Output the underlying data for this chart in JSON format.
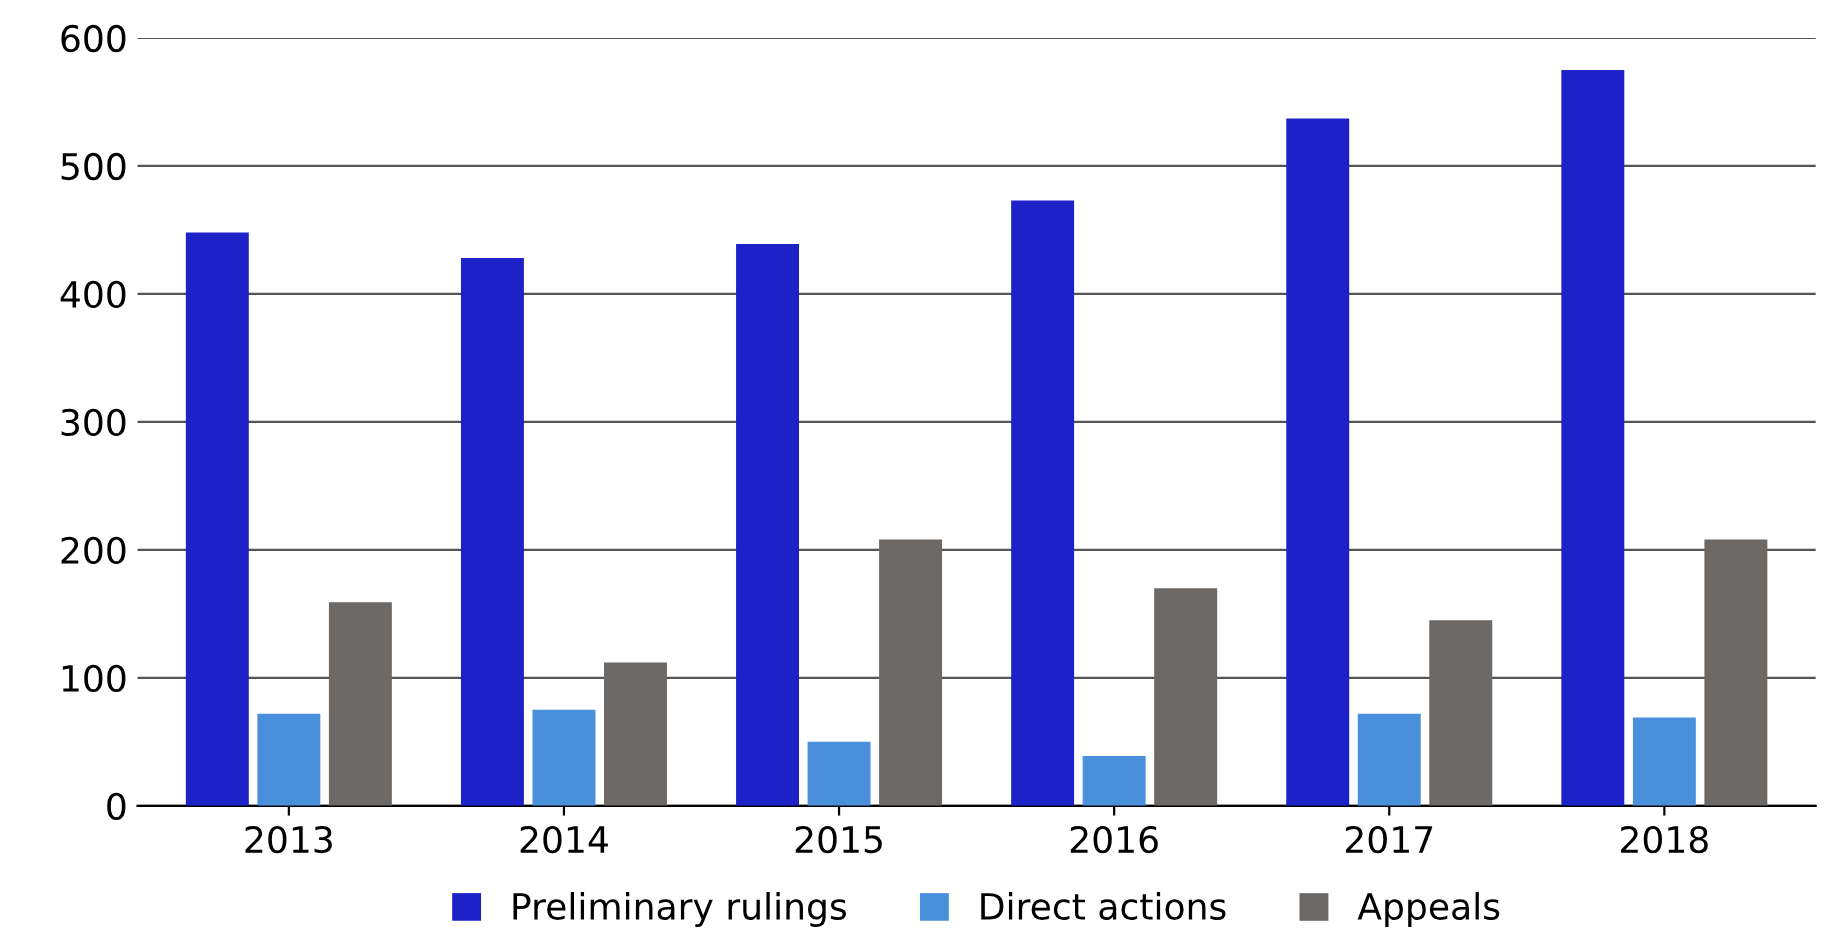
{
  "chart_data": {
    "type": "bar",
    "categories": [
      "2013",
      "2014",
      "2015",
      "2016",
      "2017",
      "2018"
    ],
    "series": [
      {
        "name": "Preliminary rulings",
        "color": "#1c22c8",
        "values": [
          448,
          428,
          439,
          473,
          537,
          575
        ]
      },
      {
        "name": "Direct actions",
        "color": "#4a8fdc",
        "values": [
          72,
          75,
          50,
          39,
          72,
          69
        ]
      },
      {
        "name": "Appeals",
        "color": "#6b6866",
        "values": [
          159,
          112,
          208,
          170,
          145,
          208
        ]
      }
    ],
    "ylim": [
      0,
      600
    ],
    "yticks": [
      0,
      100,
      200,
      300,
      400,
      500,
      600
    ],
    "grid": "y",
    "legend": "bottom"
  }
}
